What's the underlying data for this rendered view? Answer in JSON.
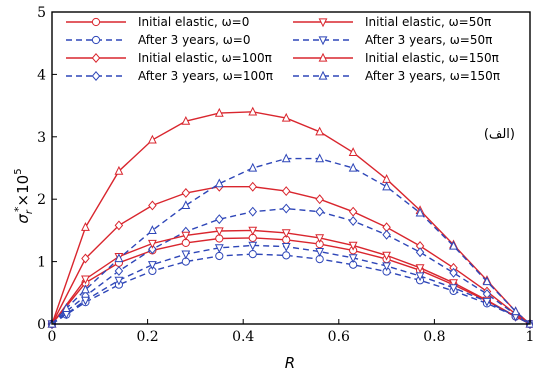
{
  "chart_data": {
    "type": "line",
    "xlabel": "R",
    "ylabel_main": "σ",
    "ylabel_sub": "r",
    "ylabel_sup": "*",
    "ylabel_mult": "×10",
    "ylabel_exp": "5",
    "xlim": [
      0,
      1
    ],
    "ylim": [
      0,
      5
    ],
    "x_ticks": [
      "0",
      "0.2",
      "0.4",
      "0.6",
      "0.8",
      "1"
    ],
    "y_ticks": [
      "0",
      "1",
      "2",
      "3",
      "4",
      "5"
    ],
    "annotation": "(الف)",
    "legend_position": "top",
    "colors": {
      "initial": "#d9262e",
      "after": "#2e46b8"
    },
    "series": [
      {
        "name": "Initial elastic, ω=0",
        "style": "solid",
        "marker": "circle",
        "x": [
          0,
          0.07,
          0.14,
          0.21,
          0.28,
          0.35,
          0.42,
          0.49,
          0.56,
          0.63,
          0.7,
          0.77,
          0.84,
          0.91,
          0.97,
          1.0
        ],
        "y": [
          0,
          0.66,
          0.98,
          1.18,
          1.3,
          1.37,
          1.38,
          1.35,
          1.28,
          1.18,
          1.04,
          0.86,
          0.63,
          0.37,
          0.12,
          0
        ]
      },
      {
        "name": "After 3 years, ω=0",
        "style": "dashed",
        "marker": "circle",
        "x": [
          0,
          0.03,
          0.07,
          0.14,
          0.21,
          0.28,
          0.35,
          0.42,
          0.49,
          0.56,
          0.63,
          0.7,
          0.77,
          0.84,
          0.91,
          0.97,
          1.0
        ],
        "y": [
          0,
          0.15,
          0.35,
          0.63,
          0.85,
          1.0,
          1.09,
          1.12,
          1.1,
          1.04,
          0.95,
          0.84,
          0.7,
          0.53,
          0.33,
          0.12,
          0
        ]
      },
      {
        "name": "Initial elastic, ω=100π",
        "style": "solid",
        "marker": "diamond",
        "x": [
          0,
          0.07,
          0.14,
          0.21,
          0.28,
          0.35,
          0.42,
          0.49,
          0.56,
          0.63,
          0.7,
          0.77,
          0.84,
          0.91,
          0.97,
          1.0
        ],
        "y": [
          0,
          1.05,
          1.58,
          1.9,
          2.1,
          2.2,
          2.2,
          2.13,
          2.0,
          1.8,
          1.55,
          1.25,
          0.9,
          0.52,
          0.16,
          0
        ]
      },
      {
        "name": "After 3 years, ω=100π",
        "style": "dashed",
        "marker": "diamond",
        "x": [
          0,
          0.03,
          0.07,
          0.14,
          0.21,
          0.28,
          0.35,
          0.42,
          0.49,
          0.56,
          0.63,
          0.7,
          0.77,
          0.84,
          0.91,
          0.97,
          1.0
        ],
        "y": [
          0,
          0.2,
          0.45,
          0.85,
          1.2,
          1.48,
          1.68,
          1.8,
          1.85,
          1.8,
          1.65,
          1.43,
          1.15,
          0.82,
          0.48,
          0.15,
          0
        ]
      },
      {
        "name": "Initial elastic, ω=50π",
        "style": "solid",
        "marker": "triangle-down",
        "x": [
          0,
          0.07,
          0.14,
          0.21,
          0.28,
          0.35,
          0.42,
          0.49,
          0.56,
          0.63,
          0.7,
          0.77,
          0.84,
          0.91,
          0.97,
          1.0
        ],
        "y": [
          0,
          0.72,
          1.08,
          1.29,
          1.42,
          1.49,
          1.5,
          1.46,
          1.38,
          1.26,
          1.1,
          0.9,
          0.66,
          0.38,
          0.12,
          0
        ]
      },
      {
        "name": "After 3 years, ω=50π",
        "style": "dashed",
        "marker": "triangle-down",
        "x": [
          0,
          0.03,
          0.07,
          0.14,
          0.21,
          0.28,
          0.35,
          0.42,
          0.49,
          0.56,
          0.63,
          0.7,
          0.77,
          0.84,
          0.91,
          0.97,
          1.0
        ],
        "y": [
          0,
          0.16,
          0.38,
          0.7,
          0.95,
          1.12,
          1.22,
          1.26,
          1.24,
          1.16,
          1.06,
          0.93,
          0.77,
          0.58,
          0.36,
          0.12,
          0
        ]
      },
      {
        "name": "Initial elastic, ω=150π",
        "style": "solid",
        "marker": "triangle-up",
        "x": [
          0,
          0.07,
          0.14,
          0.21,
          0.28,
          0.35,
          0.42,
          0.49,
          0.56,
          0.63,
          0.7,
          0.77,
          0.84,
          0.91,
          0.97,
          1.0
        ],
        "y": [
          0,
          1.55,
          2.45,
          2.95,
          3.25,
          3.38,
          3.4,
          3.3,
          3.08,
          2.75,
          2.32,
          1.82,
          1.27,
          0.7,
          0.2,
          0
        ]
      },
      {
        "name": "After 3 years, ω=150π",
        "style": "dashed",
        "marker": "triangle-up",
        "x": [
          0,
          0.03,
          0.07,
          0.14,
          0.21,
          0.28,
          0.35,
          0.42,
          0.49,
          0.56,
          0.63,
          0.7,
          0.77,
          0.84,
          0.91,
          0.97,
          1.0
        ],
        "y": [
          0,
          0.25,
          0.55,
          1.05,
          1.5,
          1.9,
          2.25,
          2.5,
          2.65,
          2.65,
          2.5,
          2.2,
          1.78,
          1.25,
          0.68,
          0.2,
          0
        ]
      }
    ]
  }
}
